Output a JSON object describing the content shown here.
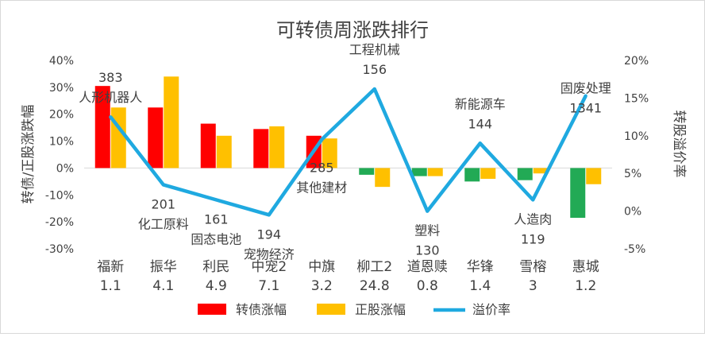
{
  "chart_data": {
    "type": "bar",
    "title": "可转债周涨跌排行",
    "ylabel": "转债/正股涨跌幅",
    "y2label": "转股溢价率",
    "ylim": [
      -30,
      40
    ],
    "y2lim": [
      -5,
      20
    ],
    "yticks": [
      "-30%",
      "-20%",
      "-10%",
      "0%",
      "10%",
      "20%",
      "30%",
      "40%"
    ],
    "y2ticks": [
      "-5%",
      "0%",
      "5%",
      "10%",
      "15%",
      "20%"
    ],
    "categories": [
      {
        "name": "福新",
        "sub": "1.1"
      },
      {
        "name": "振华",
        "sub": "4.1"
      },
      {
        "name": "利民",
        "sub": "4.9"
      },
      {
        "name": "中宠2",
        "sub": "7.1"
      },
      {
        "name": "中旗",
        "sub": "3.2"
      },
      {
        "name": "柳工2",
        "sub": "24.8"
      },
      {
        "name": "道恩赎",
        "sub": "0.8"
      },
      {
        "name": "华锋",
        "sub": "1.4"
      },
      {
        "name": "雪榕",
        "sub": "3"
      },
      {
        "name": "惠城",
        "sub": "1.2"
      }
    ],
    "series": [
      {
        "name": "转债涨幅",
        "type": "bar",
        "axis": "left",
        "color": "#ff0000",
        "altColor": "#22aa55",
        "values": [
          30.5,
          22.5,
          16.5,
          14.5,
          12,
          -2.5,
          -3,
          -5,
          -4.5,
          -18.5
        ]
      },
      {
        "name": "正股涨幅",
        "type": "bar",
        "axis": "left",
        "color": "#ffc000",
        "values": [
          22.5,
          34,
          12,
          15.5,
          11,
          -7,
          -3,
          -4,
          -2,
          -6
        ]
      },
      {
        "name": "溢价率",
        "type": "line",
        "axis": "right",
        "color": "#1fa9e0",
        "values": [
          12.5,
          3.5,
          1.5,
          -0.5,
          9.5,
          16.2,
          0,
          9,
          1.5,
          15.3
        ]
      }
    ],
    "annotations": [
      {
        "lines": [
          "383",
          "人形机器人"
        ],
        "index": 0
      },
      {
        "lines": [
          "201",
          "化工原料"
        ],
        "index": 1
      },
      {
        "lines": [
          "161",
          "固态电池"
        ],
        "index": 2
      },
      {
        "lines": [
          "194",
          "宠物经济"
        ],
        "index": 3
      },
      {
        "lines": [
          "285",
          "其他建材"
        ],
        "index": 4
      },
      {
        "lines": [
          "工程机械",
          "156"
        ],
        "index": 5
      },
      {
        "lines": [
          "塑料",
          "130"
        ],
        "index": 6
      },
      {
        "lines": [
          "新能源车",
          "144"
        ],
        "index": 7
      },
      {
        "lines": [
          "人造肉",
          "119"
        ],
        "index": 8
      },
      {
        "lines": [
          "固废处理",
          "1341"
        ],
        "index": 9
      }
    ],
    "legend_position": "bottom",
    "grid": false
  }
}
